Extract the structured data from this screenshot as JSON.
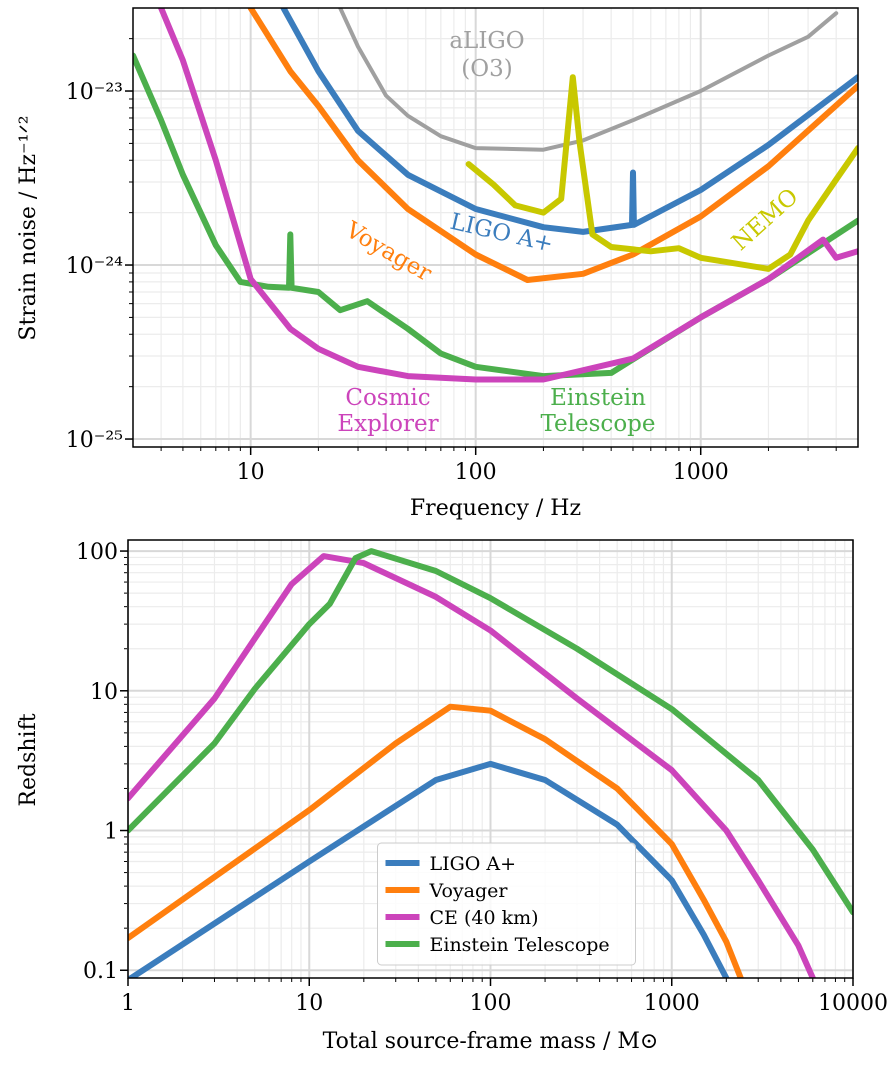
{
  "chart_data": [
    {
      "type": "line",
      "xlabel": "Frequency / Hz",
      "ylabel": "Strain noise / Hz⁻¹ᐟ²",
      "xscale": "log",
      "yscale": "log",
      "grid": true,
      "xlim": [
        3,
        5000
      ],
      "ylim": [
        9e-26,
        3e-23
      ],
      "xticks": [
        10,
        100,
        1000
      ],
      "xminorticks": [
        4,
        5,
        6,
        7,
        8,
        9,
        20,
        30,
        40,
        50,
        60,
        70,
        80,
        90,
        200,
        300,
        400,
        500,
        600,
        700,
        800,
        900,
        2000,
        3000,
        4000
      ],
      "yticks": [
        {
          "value": 1e-25,
          "label": "10⁻²⁵"
        },
        {
          "value": 1e-24,
          "label": "10⁻²⁴"
        },
        {
          "value": 1e-23,
          "label": "10⁻²³"
        }
      ],
      "yminorticks": [
        2e-25,
        3e-25,
        4e-25,
        5e-25,
        6e-25,
        7e-25,
        8e-25,
        9e-25,
        2e-24,
        3e-24,
        4e-24,
        5e-24,
        6e-24,
        7e-24,
        8e-24,
        9e-24,
        2e-23
      ],
      "series": [
        {
          "label": [
            "aLIGO",
            "(O3)"
          ],
          "color": "#a0a0a0",
          "x": [
            25,
            30,
            40,
            50,
            70,
            100,
            200,
            300,
            500,
            1000,
            2000,
            3000,
            4000
          ],
          "values": [
            3e-23,
            1.8e-23,
            9.4e-24,
            7.2e-24,
            5.5e-24,
            4.7e-24,
            4.6e-24,
            5.2e-24,
            6.8e-24,
            1e-23,
            1.6e-23,
            2.05e-23,
            2.8e-23
          ]
        },
        {
          "label": [
            "LIGO A+"
          ],
          "color": "#3b7dbd",
          "x": [
            14,
            20,
            30,
            50,
            100,
            200,
            300,
            495,
            500,
            505,
            1000,
            2000,
            5000
          ],
          "values": [
            3e-23,
            1.3e-23,
            5.9e-24,
            3.3e-24,
            2.1e-24,
            1.65e-24,
            1.55e-24,
            1.7e-24,
            3.4e-24,
            1.7e-24,
            2.7e-24,
            4.9e-24,
            1.2e-23
          ]
        },
        {
          "label": [
            "Voyager"
          ],
          "color": "#ff7f0e",
          "x": [
            10,
            15,
            20,
            30,
            50,
            100,
            170,
            300,
            500,
            1000,
            2000,
            5000
          ],
          "values": [
            3e-23,
            1.3e-23,
            8.2e-24,
            4e-24,
            2.1e-24,
            1.15e-24,
            8.2e-25,
            8.9e-25,
            1.15e-24,
            1.9e-24,
            3.7e-24,
            1.07e-23
          ]
        },
        {
          "label": [
            "NEMO"
          ],
          "color": "#c8c800",
          "x": [
            93,
            120,
            150,
            200,
            240,
            270,
            290,
            330,
            400,
            600,
            800,
            1000,
            2000,
            2500,
            3000,
            4000,
            5000
          ],
          "values": [
            3.8e-24,
            2.9e-24,
            2.2e-24,
            2e-24,
            2.4e-24,
            1.2e-23,
            5e-24,
            1.5e-24,
            1.27e-24,
            1.2e-24,
            1.25e-24,
            1.1e-24,
            9.5e-25,
            1.15e-24,
            1.8e-24,
            3.1e-24,
            4.7e-24
          ]
        },
        {
          "label": [
            "Einstein",
            "Telescope"
          ],
          "color": "#4caf4c",
          "x": [
            3,
            4,
            5,
            7,
            9,
            12,
            14.8,
            15,
            15.2,
            20,
            25,
            33,
            50,
            70,
            100,
            200,
            400,
            1000,
            2000,
            5000
          ],
          "values": [
            1.6e-23,
            6.8e-24,
            3.3e-24,
            1.3e-24,
            8e-25,
            7.5e-25,
            7.4e-25,
            1.5e-24,
            7.4e-25,
            7e-25,
            5.5e-25,
            6.2e-25,
            4.3e-25,
            3.1e-25,
            2.6e-25,
            2.3e-25,
            2.4e-25,
            5e-25,
            8.3e-25,
            1.8e-24
          ]
        },
        {
          "label": [
            "Cosmic",
            "Explorer"
          ],
          "color": "#cc44bb",
          "x": [
            4,
            5,
            7,
            10,
            15,
            20,
            30,
            50,
            100,
            200,
            500,
            1000,
            2000,
            3500,
            4000,
            5000
          ],
          "values": [
            3e-23,
            1.5e-23,
            4e-24,
            8.3e-25,
            4.3e-25,
            3.3e-25,
            2.6e-25,
            2.3e-25,
            2.2e-25,
            2.2e-25,
            2.9e-25,
            5e-25,
            8.3e-25,
            1.4e-24,
            1.1e-24,
            1.2e-24
          ]
        }
      ]
    },
    {
      "type": "line",
      "xlabel": "Total source-frame mass / M⊙",
      "ylabel": "Redshift",
      "xscale": "log",
      "yscale": "log",
      "grid": true,
      "legend": "lower center",
      "xlim": [
        1,
        10000
      ],
      "ylim": [
        0.088,
        120
      ],
      "xticks": [
        1,
        10,
        100,
        1000,
        10000
      ],
      "xminorticks": [
        2,
        3,
        4,
        5,
        6,
        7,
        8,
        9,
        20,
        30,
        40,
        50,
        60,
        70,
        80,
        90,
        200,
        300,
        400,
        500,
        600,
        700,
        800,
        900,
        2000,
        3000,
        4000,
        5000,
        6000,
        7000,
        8000,
        9000
      ],
      "yticks": [
        0.1,
        1,
        10,
        100
      ],
      "yminorticks": [
        0.2,
        0.3,
        0.4,
        0.5,
        0.6,
        0.7,
        0.8,
        0.9,
        2,
        3,
        4,
        5,
        6,
        7,
        8,
        9,
        20,
        30,
        40,
        50,
        60,
        70,
        80,
        90
      ],
      "series": [
        {
          "name": "LIGO A+",
          "color": "#3b7dbd",
          "x": [
            1,
            10,
            30,
            50,
            100,
            200,
            500,
            1000,
            1500,
            2000
          ],
          "values": [
            0.085,
            0.6,
            1.5,
            2.3,
            3.0,
            2.3,
            1.1,
            0.44,
            0.18,
            0.088
          ]
        },
        {
          "name": "Voyager",
          "color": "#ff7f0e",
          "x": [
            1,
            10,
            30,
            60,
            100,
            200,
            500,
            1000,
            1500,
            2000,
            2400
          ],
          "values": [
            0.17,
            1.4,
            4.2,
            7.7,
            7.2,
            4.5,
            2,
            0.8,
            0.32,
            0.16,
            0.088
          ]
        },
        {
          "name": "CE (40 km)",
          "color": "#cc44bb",
          "x": [
            1,
            3,
            5,
            8,
            12,
            20,
            50,
            100,
            300,
            1000,
            2000,
            3000,
            5000,
            6000
          ],
          "values": [
            1.7,
            8.8,
            23.6,
            58,
            92,
            82,
            47,
            27,
            8.8,
            2.7,
            1,
            0.44,
            0.15,
            0.088
          ]
        },
        {
          "name": "Einstein Telescope",
          "color": "#4caf4c",
          "x": [
            1,
            3,
            5,
            10,
            13,
            18,
            22,
            50,
            100,
            300,
            1000,
            3000,
            6000,
            10000
          ],
          "values": [
            1,
            4.2,
            10.3,
            30,
            42,
            89,
            100,
            72,
            46,
            20,
            7.4,
            2.3,
            0.73,
            0.26
          ]
        }
      ]
    }
  ]
}
